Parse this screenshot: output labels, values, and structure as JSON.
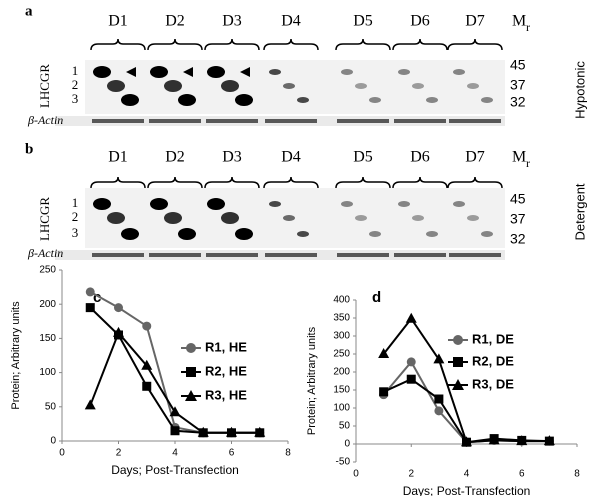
{
  "panels": [
    {
      "label": "a",
      "lanes": [
        "D1",
        "D2",
        "D3",
        "D4",
        "D5",
        "D6",
        "D7"
      ],
      "mr": "M",
      "mr_sub": "r",
      "rows": [
        "1",
        "2",
        "3"
      ],
      "protein": "LHCGR",
      "loading": "β-Actin",
      "markers": [
        "45",
        "37",
        "32"
      ],
      "condition": "Hypotonic"
    },
    {
      "label": "b",
      "lanes": [
        "D1",
        "D2",
        "D3",
        "D4",
        "D5",
        "D6",
        "D7"
      ],
      "mr": "M",
      "mr_sub": "r",
      "rows": [
        "1",
        "2",
        "3"
      ],
      "protein": "LHCGR",
      "loading": "β-Actin",
      "markers": [
        "45",
        "37",
        "32"
      ],
      "condition": "Detergent"
    }
  ],
  "chart_data": [
    {
      "type": "line",
      "panel": "c",
      "xlabel": "Days; Post-Transfection",
      "ylabel": "Protein; Arbitrary  units",
      "x": [
        1,
        2,
        3,
        4,
        5,
        6,
        7
      ],
      "xlim": [
        0,
        8
      ],
      "xticks": [
        0,
        2,
        4,
        6,
        8
      ],
      "ylim": [
        0,
        250
      ],
      "yticks": [
        0,
        50,
        100,
        150,
        200,
        250
      ],
      "series": [
        {
          "name": "R1, HE",
          "color": "#666666",
          "marker": "circle",
          "values": [
            218,
            195,
            168,
            20,
            12,
            12,
            12
          ]
        },
        {
          "name": "R2, HE",
          "color": "#000000",
          "marker": "square",
          "values": [
            195,
            155,
            80,
            15,
            12,
            12,
            12
          ]
        },
        {
          "name": "R3, HE",
          "color": "#000000",
          "marker": "triangle",
          "values": [
            52,
            158,
            110,
            42,
            12,
            12,
            12
          ]
        }
      ]
    },
    {
      "type": "line",
      "panel": "d",
      "xlabel": "Days; Post-Transfection",
      "ylabel": "Protein; Arbitrary  units",
      "x": [
        1,
        2,
        3,
        4,
        5,
        6,
        7
      ],
      "xlim": [
        0,
        8
      ],
      "xticks": [
        0,
        2,
        4,
        6,
        8
      ],
      "ylim": [
        -50,
        400
      ],
      "yticks": [
        -50,
        0,
        50,
        100,
        150,
        200,
        250,
        300,
        350,
        400
      ],
      "series": [
        {
          "name": "R1, DE",
          "color": "#666666",
          "marker": "circle",
          "values": [
            137,
            228,
            92,
            5,
            10,
            8,
            8
          ]
        },
        {
          "name": "R2, DE",
          "color": "#000000",
          "marker": "square",
          "values": [
            145,
            180,
            125,
            5,
            15,
            10,
            8
          ]
        },
        {
          "name": "R3, DE",
          "color": "#000000",
          "marker": "triangle",
          "values": [
            250,
            348,
            235,
            5,
            10,
            8,
            8
          ]
        }
      ]
    }
  ]
}
